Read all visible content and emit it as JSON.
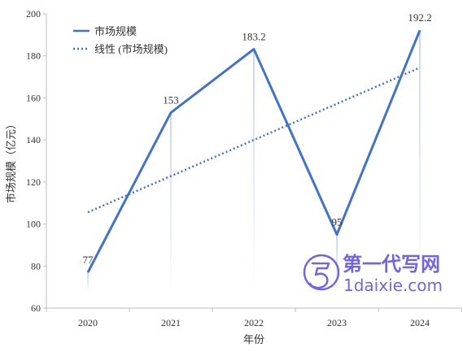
{
  "chart_data": {
    "type": "line",
    "categories": [
      "2020",
      "2021",
      "2022",
      "2023",
      "2024"
    ],
    "series": [
      {
        "name": "市场规模",
        "values": [
          77,
          153,
          183.2,
          95,
          192.2
        ],
        "color": "#4472c4",
        "style": "solid"
      },
      {
        "name": "线性 (市场规模)",
        "values": [
          105.6,
          122.8,
          140.0,
          157.2,
          174.4
        ],
        "color": "#4472c4",
        "style": "dotted"
      }
    ],
    "data_labels": [
      "77",
      "153",
      "183.2",
      "95",
      "192.2"
    ],
    "xlabel": "年份",
    "ylabel": "市场规模（亿元）",
    "yticks": [
      "60",
      "80",
      "100",
      "120",
      "140",
      "160",
      "180",
      "200"
    ],
    "ylim": [
      60,
      200
    ],
    "grid": false,
    "legend_position": "top-left",
    "legend": [
      "市场规模",
      "线性 (市场规模)"
    ]
  },
  "watermark": {
    "logo_text": "第一代写网",
    "url_text": "1daixie.com",
    "color": "#5b4bd6"
  }
}
